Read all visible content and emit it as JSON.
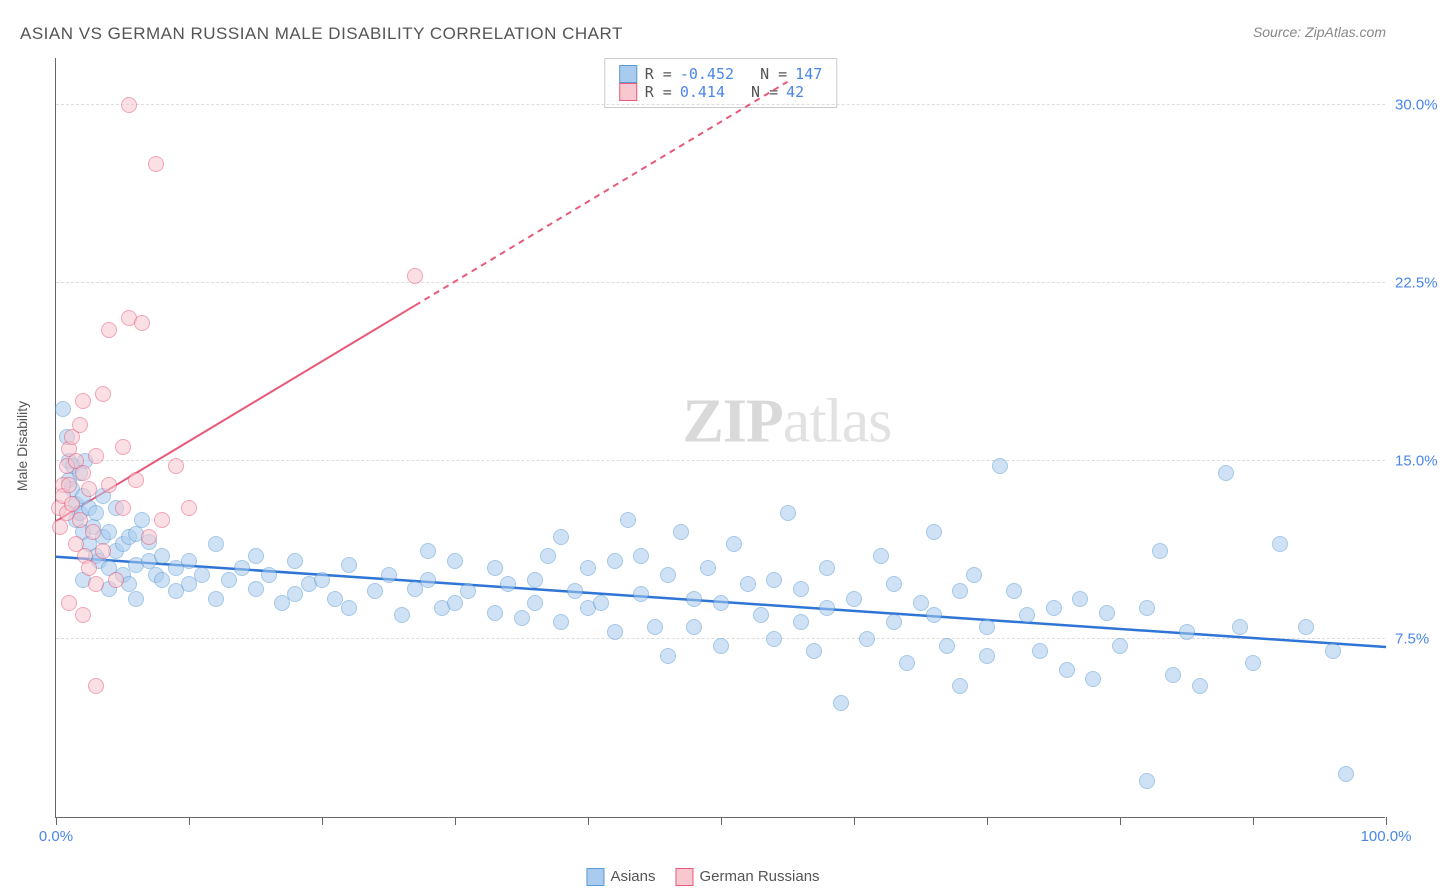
{
  "title": "ASIAN VS GERMAN RUSSIAN MALE DISABILITY CORRELATION CHART",
  "source": "Source: ZipAtlas.com",
  "ylabel": "Male Disability",
  "watermark_bold": "ZIP",
  "watermark_rest": "atlas",
  "chart": {
    "type": "scatter",
    "background_color": "#ffffff",
    "grid_color": "#dddddd",
    "axis_color": "#666666",
    "xlim": [
      0,
      100
    ],
    "ylim": [
      0,
      32
    ],
    "xtick_positions": [
      0,
      10,
      20,
      30,
      40,
      50,
      60,
      70,
      80,
      90,
      100
    ],
    "xtick_labels": {
      "0": "0.0%",
      "100": "100.0%"
    },
    "ytick_positions": [
      7.5,
      15.0,
      22.5,
      30.0
    ],
    "ytick_labels": [
      "7.5%",
      "15.0%",
      "22.5%",
      "30.0%"
    ],
    "ytick_color": "#4a86e8",
    "xtick_color": "#4a86e8",
    "label_fontsize": 14,
    "title_fontsize": 17,
    "point_radius": 8,
    "point_opacity": 0.55,
    "series": [
      {
        "name": "Asians",
        "color_fill": "#a9cbee",
        "color_stroke": "#5b9bd5",
        "R": "-0.452",
        "N": "147",
        "trend": {
          "x1": 0,
          "y1": 11.0,
          "x2": 100,
          "y2": 7.2,
          "color": "#2e75d6",
          "width": 2.5,
          "dash_after_x": null
        },
        "points": [
          [
            0.5,
            17.2
          ],
          [
            0.8,
            16.0
          ],
          [
            1.0,
            15.0
          ],
          [
            1.0,
            14.2
          ],
          [
            1.2,
            13.8
          ],
          [
            1.3,
            14.8
          ],
          [
            1.5,
            13.2
          ],
          [
            1.5,
            12.5
          ],
          [
            1.8,
            14.5
          ],
          [
            1.8,
            12.8
          ],
          [
            2.0,
            13.5
          ],
          [
            2.0,
            12.0
          ],
          [
            2.2,
            15.0
          ],
          [
            2.5,
            13.0
          ],
          [
            2.5,
            11.5
          ],
          [
            2.8,
            12.2
          ],
          [
            3.0,
            12.8
          ],
          [
            3.0,
            11.0
          ],
          [
            3.2,
            10.8
          ],
          [
            3.5,
            11.8
          ],
          [
            3.5,
            13.5
          ],
          [
            4.0,
            12.0
          ],
          [
            4.0,
            10.5
          ],
          [
            4.5,
            11.2
          ],
          [
            4.5,
            13.0
          ],
          [
            5.0,
            11.5
          ],
          [
            5.0,
            10.2
          ],
          [
            5.5,
            11.8
          ],
          [
            5.5,
            9.8
          ],
          [
            6.0,
            11.9
          ],
          [
            6.0,
            10.6
          ],
          [
            6.5,
            12.5
          ],
          [
            7.0,
            10.8
          ],
          [
            7.0,
            11.6
          ],
          [
            7.5,
            10.2
          ],
          [
            8.0,
            11.0
          ],
          [
            8.0,
            10.0
          ],
          [
            9.0,
            10.5
          ],
          [
            9.0,
            9.5
          ],
          [
            10.0,
            10.8
          ],
          [
            10.0,
            9.8
          ],
          [
            11.0,
            10.2
          ],
          [
            12.0,
            11.5
          ],
          [
            12.0,
            9.2
          ],
          [
            13.0,
            10.0
          ],
          [
            14.0,
            10.5
          ],
          [
            15.0,
            9.6
          ],
          [
            15.0,
            11.0
          ],
          [
            16.0,
            10.2
          ],
          [
            17.0,
            9.0
          ],
          [
            18.0,
            10.8
          ],
          [
            18.0,
            9.4
          ],
          [
            19.0,
            9.8
          ],
          [
            20.0,
            10.0
          ],
          [
            21.0,
            9.2
          ],
          [
            22.0,
            10.6
          ],
          [
            22.0,
            8.8
          ],
          [
            24.0,
            9.5
          ],
          [
            25.0,
            10.2
          ],
          [
            26.0,
            8.5
          ],
          [
            27.0,
            9.6
          ],
          [
            28.0,
            10.0
          ],
          [
            28.0,
            11.2
          ],
          [
            29.0,
            8.8
          ],
          [
            30.0,
            10.8
          ],
          [
            30.0,
            9.0
          ],
          [
            31.0,
            9.5
          ],
          [
            33.0,
            10.5
          ],
          [
            33.0,
            8.6
          ],
          [
            34.0,
            9.8
          ],
          [
            35.0,
            8.4
          ],
          [
            36.0,
            10.0
          ],
          [
            36.0,
            9.0
          ],
          [
            37.0,
            11.0
          ],
          [
            38.0,
            8.2
          ],
          [
            38.0,
            11.8
          ],
          [
            39.0,
            9.5
          ],
          [
            40.0,
            10.5
          ],
          [
            40.0,
            8.8
          ],
          [
            41.0,
            9.0
          ],
          [
            42.0,
            7.8
          ],
          [
            42.0,
            10.8
          ],
          [
            43.0,
            12.5
          ],
          [
            44.0,
            9.4
          ],
          [
            44.0,
            11.0
          ],
          [
            45.0,
            8.0
          ],
          [
            46.0,
            10.2
          ],
          [
            46.0,
            6.8
          ],
          [
            47.0,
            12.0
          ],
          [
            48.0,
            9.2
          ],
          [
            48.0,
            8.0
          ],
          [
            49.0,
            10.5
          ],
          [
            50.0,
            9.0
          ],
          [
            50.0,
            7.2
          ],
          [
            51.0,
            11.5
          ],
          [
            52.0,
            9.8
          ],
          [
            53.0,
            8.5
          ],
          [
            54.0,
            7.5
          ],
          [
            54.0,
            10.0
          ],
          [
            55.0,
            12.8
          ],
          [
            56.0,
            9.6
          ],
          [
            56.0,
            8.2
          ],
          [
            57.0,
            7.0
          ],
          [
            58.0,
            10.5
          ],
          [
            58.0,
            8.8
          ],
          [
            59.0,
            4.8
          ],
          [
            60.0,
            9.2
          ],
          [
            61.0,
            7.5
          ],
          [
            62.0,
            11.0
          ],
          [
            63.0,
            9.8
          ],
          [
            63.0,
            8.2
          ],
          [
            64.0,
            6.5
          ],
          [
            65.0,
            9.0
          ],
          [
            66.0,
            12.0
          ],
          [
            66.0,
            8.5
          ],
          [
            67.0,
            7.2
          ],
          [
            68.0,
            5.5
          ],
          [
            68.0,
            9.5
          ],
          [
            69.0,
            10.2
          ],
          [
            70.0,
            8.0
          ],
          [
            70.0,
            6.8
          ],
          [
            71.0,
            14.8
          ],
          [
            72.0,
            9.5
          ],
          [
            73.0,
            8.5
          ],
          [
            74.0,
            7.0
          ],
          [
            75.0,
            8.8
          ],
          [
            76.0,
            6.2
          ],
          [
            77.0,
            9.2
          ],
          [
            78.0,
            5.8
          ],
          [
            79.0,
            8.6
          ],
          [
            80.0,
            7.2
          ],
          [
            82.0,
            8.8
          ],
          [
            83.0,
            11.2
          ],
          [
            84.0,
            6.0
          ],
          [
            85.0,
            7.8
          ],
          [
            86.0,
            5.5
          ],
          [
            88.0,
            14.5
          ],
          [
            89.0,
            8.0
          ],
          [
            90.0,
            6.5
          ],
          [
            92.0,
            11.5
          ],
          [
            94.0,
            8.0
          ],
          [
            96.0,
            7.0
          ],
          [
            97.0,
            1.8
          ],
          [
            82.0,
            1.5
          ],
          [
            2.0,
            10.0
          ],
          [
            4.0,
            9.6
          ],
          [
            6.0,
            9.2
          ]
        ]
      },
      {
        "name": "German Russians",
        "color_fill": "#f7c8d0",
        "color_stroke": "#e85a7a",
        "R": "0.414",
        "N": "42",
        "trend": {
          "x1": 0,
          "y1": 12.5,
          "x2": 55,
          "y2": 31.0,
          "color": "#e85a7a",
          "width": 2,
          "dash_after_x": 27
        },
        "points": [
          [
            0.2,
            13.0
          ],
          [
            0.3,
            12.2
          ],
          [
            0.5,
            14.0
          ],
          [
            0.5,
            13.5
          ],
          [
            0.8,
            14.8
          ],
          [
            0.8,
            12.8
          ],
          [
            1.0,
            15.5
          ],
          [
            1.0,
            14.0
          ],
          [
            1.2,
            13.2
          ],
          [
            1.2,
            16.0
          ],
          [
            1.5,
            11.5
          ],
          [
            1.5,
            15.0
          ],
          [
            1.8,
            16.5
          ],
          [
            1.8,
            12.5
          ],
          [
            2.0,
            17.5
          ],
          [
            2.0,
            14.5
          ],
          [
            2.2,
            11.0
          ],
          [
            2.5,
            13.8
          ],
          [
            2.5,
            10.5
          ],
          [
            2.8,
            12.0
          ],
          [
            3.0,
            15.2
          ],
          [
            3.0,
            9.8
          ],
          [
            3.5,
            17.8
          ],
          [
            3.5,
            11.2
          ],
          [
            4.0,
            14.0
          ],
          [
            4.0,
            20.5
          ],
          [
            4.5,
            10.0
          ],
          [
            5.0,
            13.0
          ],
          [
            5.0,
            15.6
          ],
          [
            5.5,
            21.0
          ],
          [
            5.5,
            30.0
          ],
          [
            6.0,
            14.2
          ],
          [
            6.5,
            20.8
          ],
          [
            7.0,
            11.8
          ],
          [
            7.5,
            27.5
          ],
          [
            8.0,
            12.5
          ],
          [
            9.0,
            14.8
          ],
          [
            10.0,
            13.0
          ],
          [
            3.0,
            5.5
          ],
          [
            1.0,
            9.0
          ],
          [
            2.0,
            8.5
          ],
          [
            27.0,
            22.8
          ]
        ]
      }
    ]
  },
  "legend": {
    "items": [
      {
        "label": "Asians",
        "fill": "#a9cbee",
        "stroke": "#5b9bd5"
      },
      {
        "label": "German Russians",
        "fill": "#f7c8d0",
        "stroke": "#e85a7a"
      }
    ]
  }
}
